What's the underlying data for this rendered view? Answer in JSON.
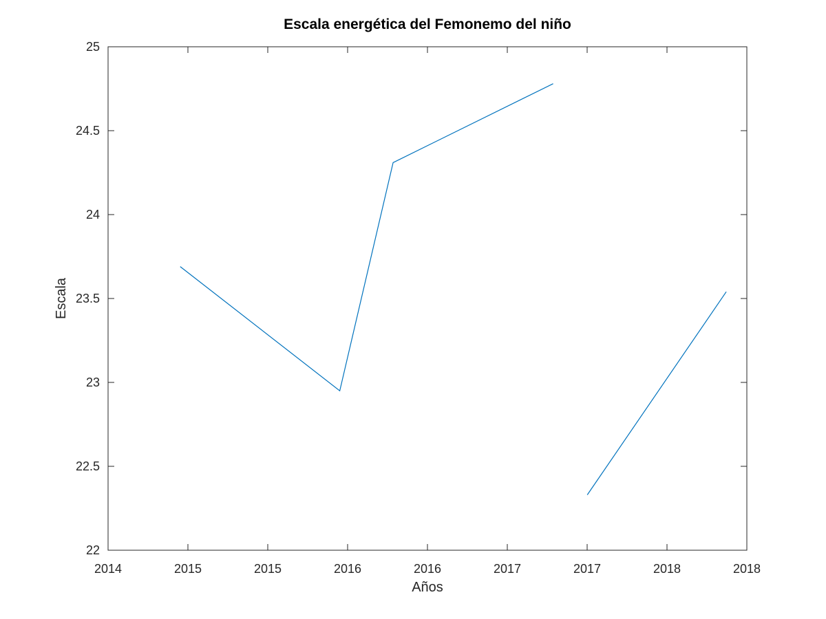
{
  "chart_data": {
    "type": "line",
    "title": "Escala energética del Femonemo del niño",
    "xlabel": "Años",
    "ylabel": "Escala",
    "xlim": [
      "2014-01-01",
      "2018-01-01"
    ],
    "ylim": [
      22,
      25
    ],
    "x_tick_labels": [
      "2014",
      "2015",
      "2015",
      "2016",
      "2016",
      "2017",
      "2017",
      "2018",
      "2018"
    ],
    "y_tick_labels": [
      "22",
      "22.5",
      "23",
      "23.5",
      "24",
      "24.5",
      "25"
    ],
    "y_ticks": [
      22,
      22.5,
      23,
      23.5,
      24,
      24.5,
      25
    ],
    "grid": false,
    "series": [
      {
        "color": "#0072BD",
        "segments": [
          {
            "x": [
              "2014-06-15",
              "2015-06-15",
              "2015-10-15",
              "2016-10-15"
            ],
            "y": [
              23.69,
              22.95,
              24.31,
              24.78
            ]
          },
          {
            "x": [
              "2017-01-01",
              "2017-11-15"
            ],
            "y": [
              22.33,
              23.54
            ]
          }
        ]
      }
    ]
  }
}
